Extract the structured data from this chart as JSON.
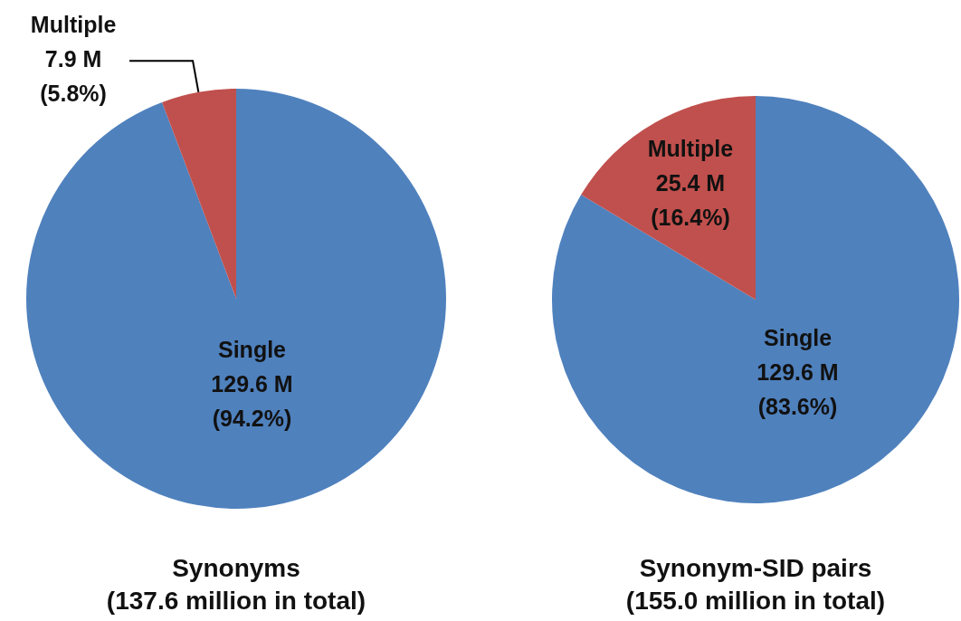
{
  "chart_data": [
    {
      "type": "pie",
      "title": "Synonyms",
      "subtitle": "(137.6 million in total)",
      "categories": [
        "Single",
        "Multiple"
      ],
      "values": [
        129.6,
        7.9
      ],
      "colors": [
        "#4f81bd",
        "#c0504d"
      ],
      "value_labels": [
        "129.6 M\n(94.2%)",
        "7.9 M\n(5.8%)"
      ]
    },
    {
      "type": "pie",
      "title": "Synonym-SID pairs",
      "subtitle": "(155.0 million in total)",
      "categories": [
        "Single",
        "Multiple"
      ],
      "values": [
        129.6,
        25.4
      ],
      "colors": [
        "#4f81bd",
        "#c0504d"
      ],
      "value_labels": [
        "129.6 M\n(83.6%)",
        "25.4 M\n(16.4%)"
      ]
    }
  ]
}
